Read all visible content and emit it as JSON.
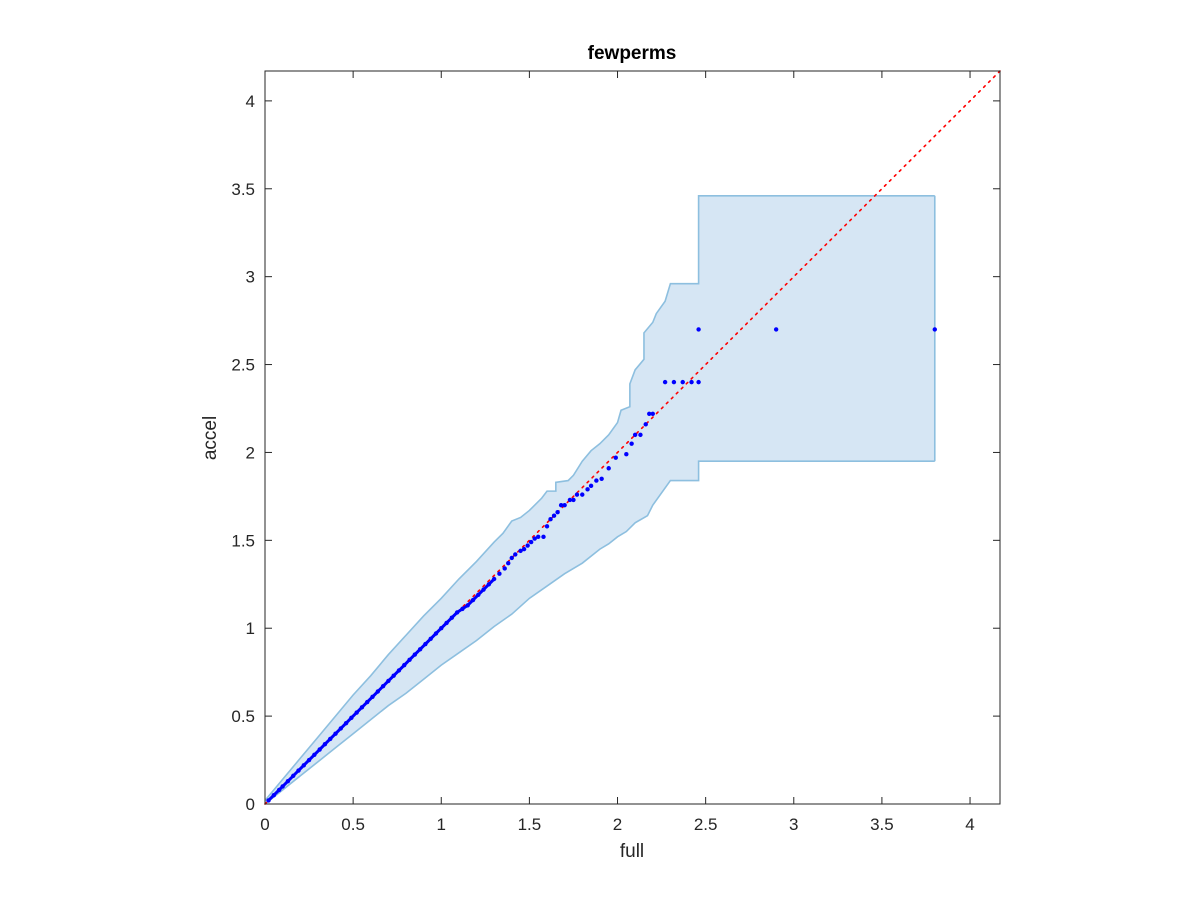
{
  "chart_data": {
    "type": "scatter",
    "title": "fewperms",
    "xlabel": "full",
    "ylabel": "accel",
    "xlim": [
      0,
      4.17
    ],
    "ylim": [
      0,
      4.17
    ],
    "xticks": [
      0,
      0.5,
      1,
      1.5,
      2,
      2.5,
      3,
      3.5,
      4
    ],
    "yticks": [
      0,
      0.5,
      1,
      1.5,
      2,
      2.5,
      3,
      3.5,
      4
    ],
    "xtick_labels": [
      "0",
      "0.5",
      "1",
      "1.5",
      "2",
      "2.5",
      "3",
      "3.5",
      "4"
    ],
    "ytick_labels": [
      "0",
      "0.5",
      "1",
      "1.5",
      "2",
      "2.5",
      "3",
      "3.5",
      "4"
    ],
    "grid": false,
    "colors": {
      "points": "#0000ff",
      "reference_line": "#ff0000",
      "band_fill": "#d6e6f4",
      "band_edge": "#8dbfdf",
      "axes": "#262626"
    },
    "reference_line": {
      "x": [
        0,
        4.17
      ],
      "y": [
        0,
        4.17
      ],
      "style": "dotted"
    },
    "confidence_band": {
      "upper": [
        [
          0,
          0.02
        ],
        [
          0.1,
          0.14
        ],
        [
          0.2,
          0.26
        ],
        [
          0.3,
          0.38
        ],
        [
          0.4,
          0.5
        ],
        [
          0.5,
          0.62
        ],
        [
          0.6,
          0.73
        ],
        [
          0.7,
          0.85
        ],
        [
          0.8,
          0.96
        ],
        [
          0.9,
          1.07
        ],
        [
          1.0,
          1.17
        ],
        [
          1.1,
          1.28
        ],
        [
          1.2,
          1.38
        ],
        [
          1.3,
          1.49
        ],
        [
          1.35,
          1.54
        ],
        [
          1.4,
          1.61
        ],
        [
          1.45,
          1.63
        ],
        [
          1.5,
          1.67
        ],
        [
          1.57,
          1.74
        ],
        [
          1.6,
          1.78
        ],
        [
          1.65,
          1.78
        ],
        [
          1.65,
          1.83
        ],
        [
          1.72,
          1.84
        ],
        [
          1.75,
          1.87
        ],
        [
          1.8,
          1.95
        ],
        [
          1.85,
          2.01
        ],
        [
          1.9,
          2.05
        ],
        [
          1.95,
          2.1
        ],
        [
          2.0,
          2.17
        ],
        [
          2.02,
          2.24
        ],
        [
          2.07,
          2.26
        ],
        [
          2.07,
          2.39
        ],
        [
          2.1,
          2.47
        ],
        [
          2.15,
          2.53
        ],
        [
          2.15,
          2.68
        ],
        [
          2.2,
          2.74
        ],
        [
          2.22,
          2.79
        ],
        [
          2.27,
          2.86
        ],
        [
          2.3,
          2.96
        ],
        [
          2.46,
          2.96
        ],
        [
          2.46,
          3.46
        ],
        [
          3.8,
          3.46
        ]
      ],
      "lower": [
        [
          0,
          0
        ],
        [
          0.1,
          0.08
        ],
        [
          0.2,
          0.16
        ],
        [
          0.3,
          0.24
        ],
        [
          0.4,
          0.32
        ],
        [
          0.5,
          0.4
        ],
        [
          0.6,
          0.48
        ],
        [
          0.7,
          0.56
        ],
        [
          0.8,
          0.63
        ],
        [
          0.9,
          0.71
        ],
        [
          1.0,
          0.79
        ],
        [
          1.1,
          0.86
        ],
        [
          1.2,
          0.93
        ],
        [
          1.3,
          1.01
        ],
        [
          1.4,
          1.08
        ],
        [
          1.5,
          1.17
        ],
        [
          1.6,
          1.24
        ],
        [
          1.7,
          1.31
        ],
        [
          1.8,
          1.37
        ],
        [
          1.9,
          1.45
        ],
        [
          1.95,
          1.48
        ],
        [
          2.0,
          1.52
        ],
        [
          2.05,
          1.55
        ],
        [
          2.1,
          1.6
        ],
        [
          2.17,
          1.64
        ],
        [
          2.2,
          1.7
        ],
        [
          2.3,
          1.84
        ],
        [
          2.46,
          1.84
        ],
        [
          2.46,
          1.95
        ],
        [
          3.8,
          1.95
        ]
      ]
    },
    "series": [
      {
        "x": [
          0.02,
          0.05,
          0.08,
          0.1,
          0.13,
          0.16,
          0.19,
          0.22,
          0.25,
          0.28,
          0.31,
          0.34,
          0.37,
          0.4,
          0.43,
          0.46,
          0.49,
          0.52,
          0.55,
          0.58,
          0.61,
          0.64,
          0.67,
          0.7,
          0.73,
          0.76,
          0.79,
          0.82,
          0.85,
          0.88,
          0.91,
          0.94,
          0.97,
          1.0,
          1.03,
          1.06,
          1.09,
          1.12,
          1.15,
          1.18,
          1.21,
          1.24,
          1.27,
          1.3,
          1.33,
          1.36,
          1.38,
          1.4,
          1.42,
          1.45,
          1.47,
          1.49,
          1.51,
          1.53,
          1.55,
          1.58,
          1.6,
          1.62,
          1.64,
          1.66,
          1.68,
          1.7,
          1.73,
          1.75,
          1.77,
          1.8,
          1.83,
          1.85,
          1.88,
          1.91,
          1.95,
          1.99,
          2.05,
          2.08,
          2.1,
          2.13,
          2.16,
          2.18,
          2.2,
          2.27,
          2.32,
          2.37,
          2.42,
          2.46,
          2.46,
          2.9,
          3.8
        ],
        "y": [
          0.02,
          0.05,
          0.08,
          0.1,
          0.13,
          0.16,
          0.19,
          0.22,
          0.25,
          0.28,
          0.31,
          0.34,
          0.37,
          0.4,
          0.43,
          0.46,
          0.49,
          0.52,
          0.55,
          0.58,
          0.61,
          0.64,
          0.67,
          0.7,
          0.73,
          0.76,
          0.79,
          0.82,
          0.85,
          0.88,
          0.91,
          0.94,
          0.97,
          1.0,
          1.03,
          1.06,
          1.09,
          1.11,
          1.13,
          1.16,
          1.19,
          1.22,
          1.25,
          1.28,
          1.31,
          1.34,
          1.37,
          1.4,
          1.42,
          1.44,
          1.45,
          1.47,
          1.49,
          1.51,
          1.52,
          1.52,
          1.58,
          1.62,
          1.64,
          1.66,
          1.7,
          1.7,
          1.73,
          1.73,
          1.76,
          1.76,
          1.79,
          1.81,
          1.84,
          1.85,
          1.91,
          1.97,
          1.99,
          2.05,
          2.1,
          2.1,
          2.16,
          2.22,
          2.22,
          2.4,
          2.4,
          2.4,
          2.4,
          2.4,
          2.7,
          2.7,
          2.7
        ]
      }
    ]
  }
}
